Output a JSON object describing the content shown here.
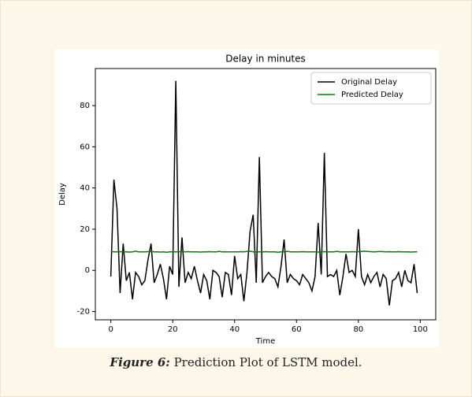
{
  "chart_data": {
    "type": "line",
    "title": "Delay in minutes",
    "x_label": "Time",
    "y_label": "Delay",
    "x": [
      0,
      1,
      2,
      3,
      4,
      5,
      6,
      7,
      8,
      9,
      10,
      11,
      12,
      13,
      14,
      15,
      16,
      17,
      18,
      19,
      20,
      21,
      22,
      23,
      24,
      25,
      26,
      27,
      28,
      29,
      30,
      31,
      32,
      33,
      34,
      35,
      36,
      37,
      38,
      39,
      40,
      41,
      42,
      43,
      44,
      45,
      46,
      47,
      48,
      49,
      50,
      51,
      52,
      53,
      54,
      55,
      56,
      57,
      58,
      59,
      60,
      61,
      62,
      63,
      64,
      65,
      66,
      67,
      68,
      69,
      70,
      71,
      72,
      73,
      74,
      75,
      76,
      77,
      78,
      79,
      80,
      81,
      82,
      83,
      84,
      85,
      86,
      87,
      88,
      89,
      90,
      91,
      92,
      93,
      94,
      95,
      96,
      97,
      98,
      99
    ],
    "series": [
      {
        "name": "Original Delay",
        "color": "#000000",
        "values": [
          -3,
          44,
          30,
          -11,
          13,
          -5,
          -1,
          -14,
          -1,
          -3,
          -7,
          -5,
          5,
          13,
          -6,
          -2,
          3,
          -4,
          -14,
          2,
          -2,
          92,
          -8,
          16,
          -6,
          -1,
          -4,
          2,
          -5,
          -11,
          -2,
          -5,
          -14,
          0,
          -1,
          -3,
          -13,
          -1,
          -2,
          -12,
          7,
          -4,
          -2,
          -15,
          -1,
          19,
          27,
          -6,
          55,
          -6,
          -3,
          -1,
          -3,
          -4,
          -8,
          2,
          15,
          -6,
          -2,
          -4,
          -5,
          -7,
          -2,
          -4,
          -6,
          -10,
          -3,
          23,
          -2,
          57,
          -3,
          -2,
          -3,
          0,
          -12,
          -3,
          8,
          -1,
          0,
          -3,
          20,
          -3,
          -7,
          -2,
          -6,
          -3,
          -1,
          -8,
          -2,
          -4,
          -17,
          -5,
          -4,
          -1,
          -8,
          0,
          -5,
          -6,
          3,
          -11
        ]
      },
      {
        "name": "Predicted Delay",
        "color": "#008000",
        "values": [
          9.2,
          9,
          9,
          9.1,
          9,
          9,
          8.9,
          9,
          9.3,
          9,
          9,
          9,
          9.1,
          9.2,
          9,
          9,
          8.9,
          9,
          8.8,
          9,
          9,
          9,
          9,
          9.2,
          9,
          9.1,
          9,
          9,
          9,
          8.9,
          9,
          9,
          9.1,
          9,
          9,
          9.2,
          9,
          9,
          9,
          9,
          9,
          9,
          9.1,
          9,
          9.2,
          9.3,
          9,
          9,
          9,
          9,
          9.1,
          9,
          9,
          9,
          8.8,
          9,
          9,
          9.2,
          9,
          9,
          9,
          9,
          9.1,
          9,
          9,
          9,
          9,
          8.9,
          9,
          9.1,
          9,
          9,
          9,
          9.2,
          9,
          9,
          9,
          9,
          9.1,
          9,
          9.1,
          9.2,
          9.3,
          9.2,
          9.1,
          9,
          9.1,
          9.2,
          9.1,
          9,
          9.1,
          9,
          9,
          9.1,
          9,
          9,
          9,
          8.9,
          9,
          9
        ]
      }
    ],
    "xlim": [
      -5,
      105
    ],
    "ylim": [
      -24,
      98
    ],
    "xticks": [
      0,
      20,
      40,
      60,
      80,
      100
    ],
    "yticks": [
      -20,
      0,
      20,
      40,
      60,
      80
    ],
    "legend": "upper right"
  },
  "caption": {
    "label": "Figure 6:",
    "text": "Prediction Plot of LSTM model."
  }
}
